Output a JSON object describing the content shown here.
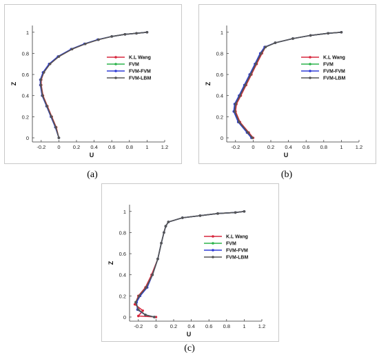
{
  "captions": [
    "(a)",
    "(b)",
    "(c)"
  ],
  "legend": [
    "K.L Wang",
    "FVM",
    "FVM-FVM",
    "FVM-LBM"
  ],
  "colors": {
    "K.L Wang": "#d7263d",
    "FVM": "#2bb34a",
    "FVM-FVM": "#2f3bd6",
    "FVM-LBM": "#555555"
  },
  "chart_data": [
    {
      "type": "line",
      "xlabel": "U",
      "ylabel": "Z",
      "xlim": [
        -0.3,
        1.2
      ],
      "ylim": [
        0,
        1.0
      ],
      "xticks": [
        "-0.2",
        "0",
        "0.2",
        "0.4",
        "0.6",
        "0.8",
        "1",
        "1.2"
      ],
      "yticks": [
        "0",
        "0.2",
        "0.4",
        "0.6",
        "0.8",
        "1"
      ],
      "series": [
        {
          "name": "K.L Wang",
          "x": [
            0,
            -0.03,
            -0.08,
            -0.13,
            -0.18,
            -0.2,
            -0.2,
            -0.17,
            -0.1,
            0.0,
            0.15,
            0.3,
            0.45,
            0.6,
            0.75,
            0.88,
            1.0
          ],
          "y": [
            0,
            0.1,
            0.2,
            0.3,
            0.4,
            0.5,
            0.55,
            0.62,
            0.7,
            0.77,
            0.84,
            0.89,
            0.93,
            0.96,
            0.98,
            0.99,
            1.0
          ]
        },
        {
          "name": "FVM",
          "x": [
            0,
            -0.035,
            -0.085,
            -0.135,
            -0.185,
            -0.205,
            -0.205,
            -0.175,
            -0.105,
            -0.005,
            0.145,
            0.295,
            0.445,
            0.6,
            0.75,
            0.88,
            1.0
          ],
          "y": [
            0,
            0.1,
            0.2,
            0.3,
            0.4,
            0.5,
            0.55,
            0.62,
            0.7,
            0.77,
            0.84,
            0.89,
            0.93,
            0.96,
            0.98,
            0.99,
            1.0
          ]
        },
        {
          "name": "FVM-FVM",
          "x": [
            0,
            -0.04,
            -0.09,
            -0.14,
            -0.19,
            -0.21,
            -0.21,
            -0.18,
            -0.11,
            -0.01,
            0.14,
            0.29,
            0.44,
            0.6,
            0.75,
            0.88,
            1.0
          ],
          "y": [
            0,
            0.1,
            0.2,
            0.3,
            0.4,
            0.5,
            0.55,
            0.62,
            0.7,
            0.77,
            0.84,
            0.89,
            0.93,
            0.96,
            0.98,
            0.99,
            1.0
          ]
        },
        {
          "name": "FVM-LBM",
          "x": [
            0,
            -0.035,
            -0.085,
            -0.135,
            -0.185,
            -0.205,
            -0.205,
            -0.17,
            -0.1,
            0.0,
            0.15,
            0.3,
            0.45,
            0.6,
            0.75,
            0.88,
            1.0
          ],
          "y": [
            0,
            0.1,
            0.2,
            0.3,
            0.4,
            0.5,
            0.55,
            0.62,
            0.7,
            0.77,
            0.84,
            0.89,
            0.93,
            0.96,
            0.98,
            0.99,
            1.0
          ]
        }
      ]
    },
    {
      "type": "line",
      "xlabel": "U",
      "ylabel": "Z",
      "xlim": [
        -0.3,
        1.2
      ],
      "ylim": [
        0,
        1.0
      ],
      "xticks": [
        "-0.2",
        "0",
        "0.2",
        "0.4",
        "0.6",
        "0.8",
        "1",
        "1.2"
      ],
      "yticks": [
        "0",
        "0.2",
        "0.4",
        "0.6",
        "0.8",
        "1"
      ],
      "series": [
        {
          "name": "K.L Wang",
          "x": [
            0,
            -0.05,
            -0.15,
            -0.2,
            -0.19,
            -0.14,
            -0.08,
            -0.02,
            0.04,
            0.1,
            0.14,
            0.25,
            0.45,
            0.65,
            0.85,
            1.0
          ],
          "y": [
            0,
            0.05,
            0.15,
            0.25,
            0.32,
            0.4,
            0.5,
            0.6,
            0.7,
            0.8,
            0.86,
            0.9,
            0.94,
            0.97,
            0.99,
            1.0
          ]
        },
        {
          "name": "FVM",
          "x": [
            -0.01,
            -0.06,
            -0.16,
            -0.21,
            -0.2,
            -0.15,
            -0.09,
            -0.03,
            0.03,
            0.09,
            0.14,
            0.25,
            0.45,
            0.65,
            0.85,
            1.0
          ],
          "y": [
            0,
            0.05,
            0.15,
            0.25,
            0.32,
            0.4,
            0.5,
            0.6,
            0.7,
            0.8,
            0.86,
            0.9,
            0.94,
            0.97,
            0.99,
            1.0
          ]
        },
        {
          "name": "FVM-FVM",
          "x": [
            -0.02,
            -0.07,
            -0.17,
            -0.22,
            -0.21,
            -0.16,
            -0.1,
            -0.04,
            0.02,
            0.08,
            0.13,
            0.25,
            0.45,
            0.65,
            0.85,
            1.0
          ],
          "y": [
            0,
            0.05,
            0.15,
            0.25,
            0.32,
            0.4,
            0.5,
            0.6,
            0.7,
            0.8,
            0.86,
            0.9,
            0.94,
            0.97,
            0.99,
            1.0
          ]
        },
        {
          "name": "FVM-LBM",
          "x": [
            -0.01,
            -0.06,
            -0.16,
            -0.21,
            -0.2,
            -0.15,
            -0.09,
            -0.03,
            0.03,
            0.09,
            0.14,
            0.25,
            0.45,
            0.65,
            0.85,
            1.0
          ],
          "y": [
            0,
            0.05,
            0.15,
            0.25,
            0.32,
            0.4,
            0.5,
            0.6,
            0.7,
            0.8,
            0.86,
            0.9,
            0.94,
            0.97,
            0.99,
            1.0
          ]
        }
      ]
    },
    {
      "type": "line",
      "xlabel": "U",
      "ylabel": "Z",
      "xlim": [
        -0.3,
        1.2
      ],
      "ylim": [
        0,
        1.0
      ],
      "xticks": [
        "-0.2",
        "0",
        "0.2",
        "0.4",
        "0.6",
        "0.8",
        "1",
        "1.2"
      ],
      "yticks": [
        "0",
        "0.2",
        "0.4",
        "0.6",
        "0.8",
        "1"
      ],
      "series": [
        {
          "name": "K.L Wang",
          "x": [
            0,
            -0.2,
            -0.15,
            -0.24,
            -0.2,
            -0.12,
            -0.05,
            0.02,
            0.06,
            0.09,
            0.11,
            0.14,
            0.3,
            0.5,
            0.7,
            0.9,
            1.0
          ],
          "y": [
            0,
            0.01,
            0.06,
            0.12,
            0.2,
            0.28,
            0.4,
            0.55,
            0.7,
            0.8,
            0.86,
            0.9,
            0.94,
            0.96,
            0.98,
            0.99,
            1.0
          ]
        },
        {
          "name": "FVM",
          "x": [
            -0.02,
            -0.12,
            -0.2,
            -0.23,
            -0.19,
            -0.11,
            -0.04,
            0.02,
            0.06,
            0.09,
            0.11,
            0.14,
            0.3,
            0.5,
            0.7,
            0.9,
            1.0
          ],
          "y": [
            0,
            0.02,
            0.07,
            0.14,
            0.2,
            0.28,
            0.4,
            0.55,
            0.7,
            0.8,
            0.86,
            0.9,
            0.94,
            0.96,
            0.98,
            0.99,
            1.0
          ]
        },
        {
          "name": "FVM-FVM",
          "x": [
            -0.02,
            -0.12,
            -0.21,
            -0.22,
            -0.18,
            -0.1,
            -0.04,
            0.02,
            0.06,
            0.09,
            0.11,
            0.14,
            0.3,
            0.5,
            0.7,
            0.9,
            1.0
          ],
          "y": [
            0,
            0.02,
            0.07,
            0.14,
            0.2,
            0.28,
            0.4,
            0.55,
            0.7,
            0.8,
            0.86,
            0.9,
            0.94,
            0.96,
            0.98,
            0.99,
            1.0
          ]
        },
        {
          "name": "FVM-LBM",
          "x": [
            -0.02,
            -0.12,
            -0.2,
            -0.23,
            -0.19,
            -0.11,
            -0.04,
            0.02,
            0.06,
            0.09,
            0.11,
            0.14,
            0.3,
            0.5,
            0.7,
            0.9,
            1.0
          ],
          "y": [
            0,
            0.02,
            0.07,
            0.14,
            0.2,
            0.28,
            0.4,
            0.55,
            0.7,
            0.8,
            0.86,
            0.9,
            0.94,
            0.96,
            0.98,
            0.99,
            1.0
          ]
        }
      ]
    }
  ]
}
